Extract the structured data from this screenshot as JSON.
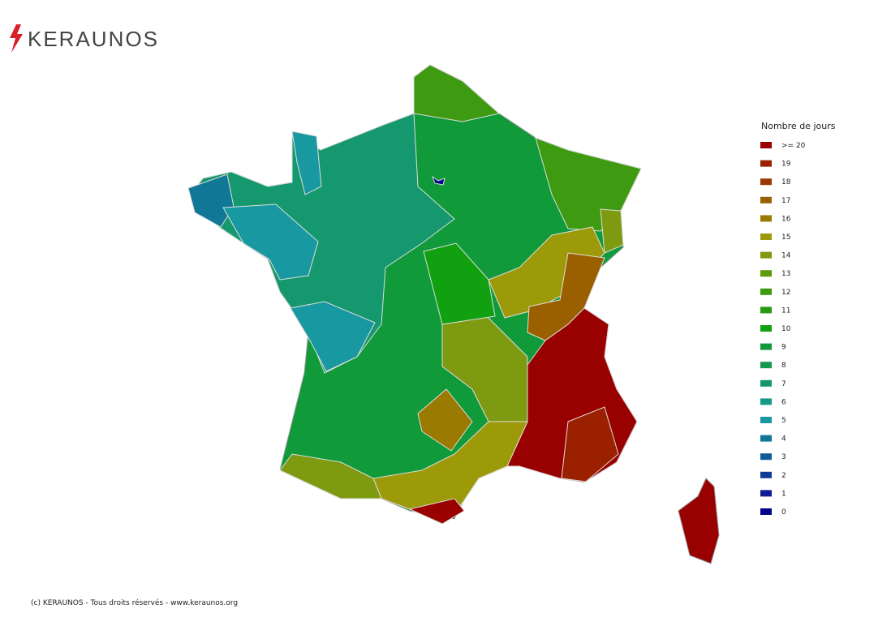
{
  "header": {
    "logo": "KERAUNOS"
  },
  "legend": {
    "title": "Nombre de jours",
    "items": [
      {
        "value": 20,
        "label": ">= 20",
        "color": "#990000"
      },
      {
        "value": 19,
        "label": "19",
        "color": "#9a2000"
      },
      {
        "value": 18,
        "label": "18",
        "color": "#9a3a00"
      },
      {
        "value": 17,
        "label": "17",
        "color": "#9a6000"
      },
      {
        "value": 16,
        "label": "16",
        "color": "#9a7a00"
      },
      {
        "value": 15,
        "label": "15",
        "color": "#9c9a08"
      },
      {
        "value": 14,
        "label": "14",
        "color": "#7e9a10"
      },
      {
        "value": 13,
        "label": "13",
        "color": "#5e9a0c"
      },
      {
        "value": 12,
        "label": "12",
        "color": "#3e9a10"
      },
      {
        "value": 11,
        "label": "11",
        "color": "#269a12"
      },
      {
        "value": 10,
        "label": "10",
        "color": "#10a010"
      },
      {
        "value": 9,
        "label": "9",
        "color": "#109a3a"
      },
      {
        "value": 8,
        "label": "8",
        "color": "#129a50"
      },
      {
        "value": 7,
        "label": "7",
        "color": "#15986e"
      },
      {
        "value": 6,
        "label": "6",
        "color": "#159a88"
      },
      {
        "value": 5,
        "label": "5",
        "color": "#1898a0"
      },
      {
        "value": 4,
        "label": "4",
        "color": "#107896"
      },
      {
        "value": 3,
        "label": "3",
        "color": "#105a98"
      },
      {
        "value": 2,
        "label": "2",
        "color": "#103a98"
      },
      {
        "value": 1,
        "label": "1",
        "color": "#101a98"
      },
      {
        "value": 0,
        "label": "0",
        "color": "#000088"
      }
    ]
  },
  "map": {
    "regions": [
      9,
      7,
      4,
      5,
      5,
      5,
      12,
      12,
      14,
      15,
      17,
      20,
      19,
      15,
      20,
      14,
      16,
      14,
      10,
      0,
      20
    ]
  },
  "footer": "(c) KERAUNOS - Tous droits réservés - www.keraunos.org"
}
